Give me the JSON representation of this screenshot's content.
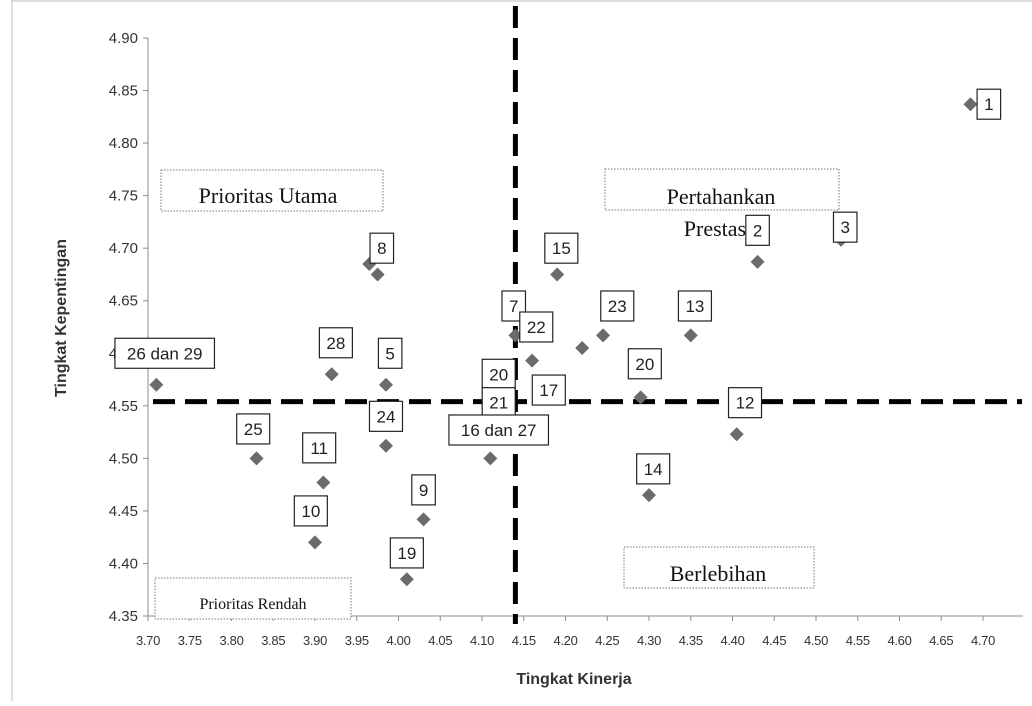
{
  "chart_data": {
    "type": "scatter",
    "xlabel": "Tingkat Kinerja",
    "ylabel": "Tingkat Kepentingan",
    "xlim": [
      3.7,
      4.7
    ],
    "ylim": [
      4.35,
      4.9
    ],
    "x_ticks": [
      "3.70",
      "3.75",
      "3.80",
      "3.85",
      "3.90",
      "3.95",
      "4.00",
      "4.05",
      "4.10",
      "4.15",
      "4.20",
      "4.25",
      "4.30",
      "4.35",
      "4.40",
      "4.45",
      "4.50",
      "4.55",
      "4.60",
      "4.65",
      "4.70"
    ],
    "y_ticks": [
      "4.35",
      "4.40",
      "4.45",
      "4.50",
      "4.55",
      "4.60",
      "4.65",
      "4.70",
      "4.75",
      "4.80",
      "4.85",
      "4.90"
    ],
    "x_mean": 4.14,
    "y_mean": 4.554,
    "grid": false,
    "marker_color": "#6b6b6b",
    "quadrants": {
      "top_left": "Prioritas  Utama",
      "top_right_line1": "Pertahankan",
      "top_right_line2": "Prestasi",
      "bottom_left": "Prioritas Rendah",
      "bottom_right": "Berlebihan"
    },
    "points": [
      {
        "x": 3.71,
        "y": 4.57
      },
      {
        "x": 3.83,
        "y": 4.5
      },
      {
        "x": 3.9,
        "y": 4.42
      },
      {
        "x": 3.91,
        "y": 4.477
      },
      {
        "x": 3.92,
        "y": 4.58
      },
      {
        "x": 3.965,
        "y": 4.685
      },
      {
        "x": 3.975,
        "y": 4.675
      },
      {
        "x": 3.985,
        "y": 4.57
      },
      {
        "x": 3.985,
        "y": 4.512
      },
      {
        "x": 4.01,
        "y": 4.385
      },
      {
        "x": 4.03,
        "y": 4.442
      },
      {
        "x": 4.11,
        "y": 4.5
      },
      {
        "x": 4.13,
        "y": 4.57
      },
      {
        "x": 4.14,
        "y": 4.617
      },
      {
        "x": 4.16,
        "y": 4.593
      },
      {
        "x": 4.165,
        "y": 4.535
      },
      {
        "x": 4.19,
        "y": 4.675
      },
      {
        "x": 4.22,
        "y": 4.605
      },
      {
        "x": 4.245,
        "y": 4.617
      },
      {
        "x": 4.29,
        "y": 4.558
      },
      {
        "x": 4.3,
        "y": 4.465
      },
      {
        "x": 4.35,
        "y": 4.617
      },
      {
        "x": 4.405,
        "y": 4.523
      },
      {
        "x": 4.43,
        "y": 4.687
      },
      {
        "x": 4.53,
        "y": 4.708
      },
      {
        "x": 4.685,
        "y": 4.837
      }
    ],
    "labels": [
      {
        "text": "1",
        "x": 4.707,
        "y": 4.837
      },
      {
        "text": "2",
        "x": 4.43,
        "y": 4.717
      },
      {
        "text": "3",
        "x": 4.535,
        "y": 4.72
      },
      {
        "text": "5",
        "x": 3.99,
        "y": 4.6
      },
      {
        "text": "7",
        "x": 4.138,
        "y": 4.645
      },
      {
        "text": "8",
        "x": 3.98,
        "y": 4.7
      },
      {
        "text": "9",
        "x": 4.03,
        "y": 4.47
      },
      {
        "text": "10",
        "x": 3.895,
        "y": 4.45
      },
      {
        "text": "11",
        "x": 3.905,
        "y": 4.51
      },
      {
        "text": "12",
        "x": 4.415,
        "y": 4.553
      },
      {
        "text": "13",
        "x": 4.355,
        "y": 4.645
      },
      {
        "text": "14",
        "x": 4.305,
        "y": 4.49
      },
      {
        "text": "15",
        "x": 4.195,
        "y": 4.7
      },
      {
        "text": "17",
        "x": 4.18,
        "y": 4.565
      },
      {
        "text": "19",
        "x": 4.01,
        "y": 4.41
      },
      {
        "text": "20",
        "x": 4.12,
        "y": 4.58
      },
      {
        "text": "20",
        "x": 4.295,
        "y": 4.59
      },
      {
        "text": "21",
        "x": 4.12,
        "y": 4.553
      },
      {
        "text": "22",
        "x": 4.165,
        "y": 4.625
      },
      {
        "text": "23",
        "x": 4.262,
        "y": 4.645
      },
      {
        "text": "24",
        "x": 3.985,
        "y": 4.54
      },
      {
        "text": "25",
        "x": 3.826,
        "y": 4.528
      },
      {
        "text": "28",
        "x": 3.925,
        "y": 4.61
      },
      {
        "text": "16 dan 27",
        "x": 4.12,
        "y": 4.527
      },
      {
        "text": "26 dan 29",
        "x": 3.72,
        "y": 4.6
      }
    ]
  }
}
